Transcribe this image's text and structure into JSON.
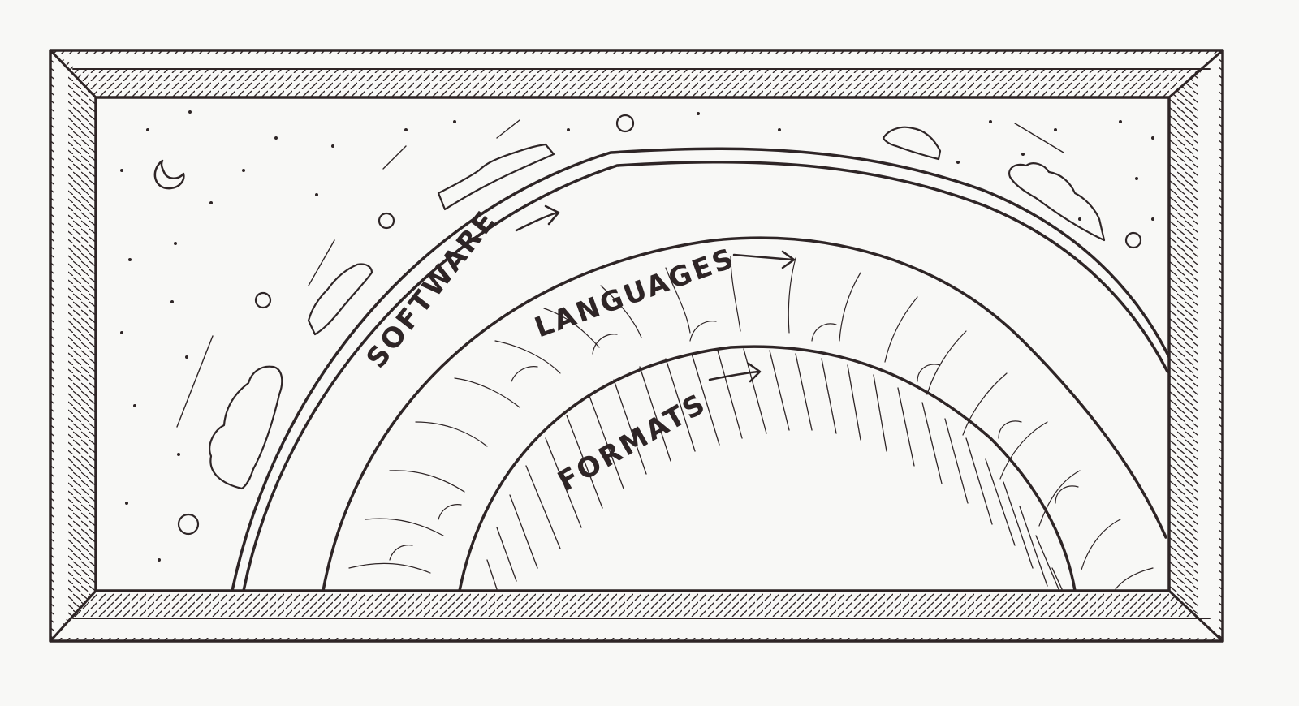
{
  "diagram": {
    "layers": [
      {
        "label": "SOFTWARE",
        "role": "outer"
      },
      {
        "label": "LANGUAGES",
        "role": "middle"
      },
      {
        "label": "FORMATS",
        "role": "inner"
      }
    ],
    "arrow_icon": "right-arrow-icon",
    "ink_color": "#2e2526",
    "paper_color": "#f8f8f6"
  }
}
